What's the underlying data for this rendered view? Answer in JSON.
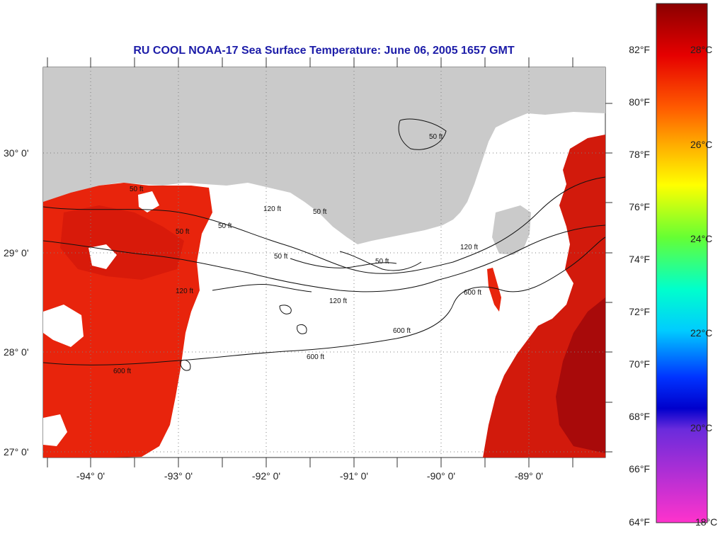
{
  "title": "RU COOL  NOAA-17  Sea Surface Temperature:  June 06, 2005 1657 GMT",
  "colors": {
    "land": "#cacaca",
    "no_data": "#ffffff",
    "sst_warm": "#e8240c",
    "sst_hot": "#b40808",
    "contour": "#111111",
    "grid": "#808080"
  },
  "longitude_labels": [
    "-94° 0'",
    "-93° 0'",
    "-92° 0'",
    "-91° 0'",
    "-90° 0'",
    "-89° 0'"
  ],
  "latitude_labels": [
    "30° 0'",
    "29° 0'",
    "28° 0'",
    "27° 0'"
  ],
  "contour_labels": {
    "a": "50 ft",
    "b": "50 ft",
    "c": "50 ft",
    "d": "50 ft",
    "e": "50 ft",
    "f": "50 ft",
    "g": "50 ft",
    "h": "120 ft",
    "i": "120 ft",
    "j": "120 ft",
    "k": "120 ft",
    "l": "600 ft",
    "m": "600 ft",
    "n": "600 ft",
    "o": "600 ft"
  },
  "color_scale": {
    "fahrenheit": [
      "82°F",
      "80°F",
      "78°F",
      "76°F",
      "74°F",
      "72°F",
      "70°F",
      "68°F",
      "66°F",
      "64°F"
    ],
    "celsius": [
      "28°C",
      "26°C",
      "24°C",
      "22°C",
      "20°C",
      "18°C"
    ]
  }
}
